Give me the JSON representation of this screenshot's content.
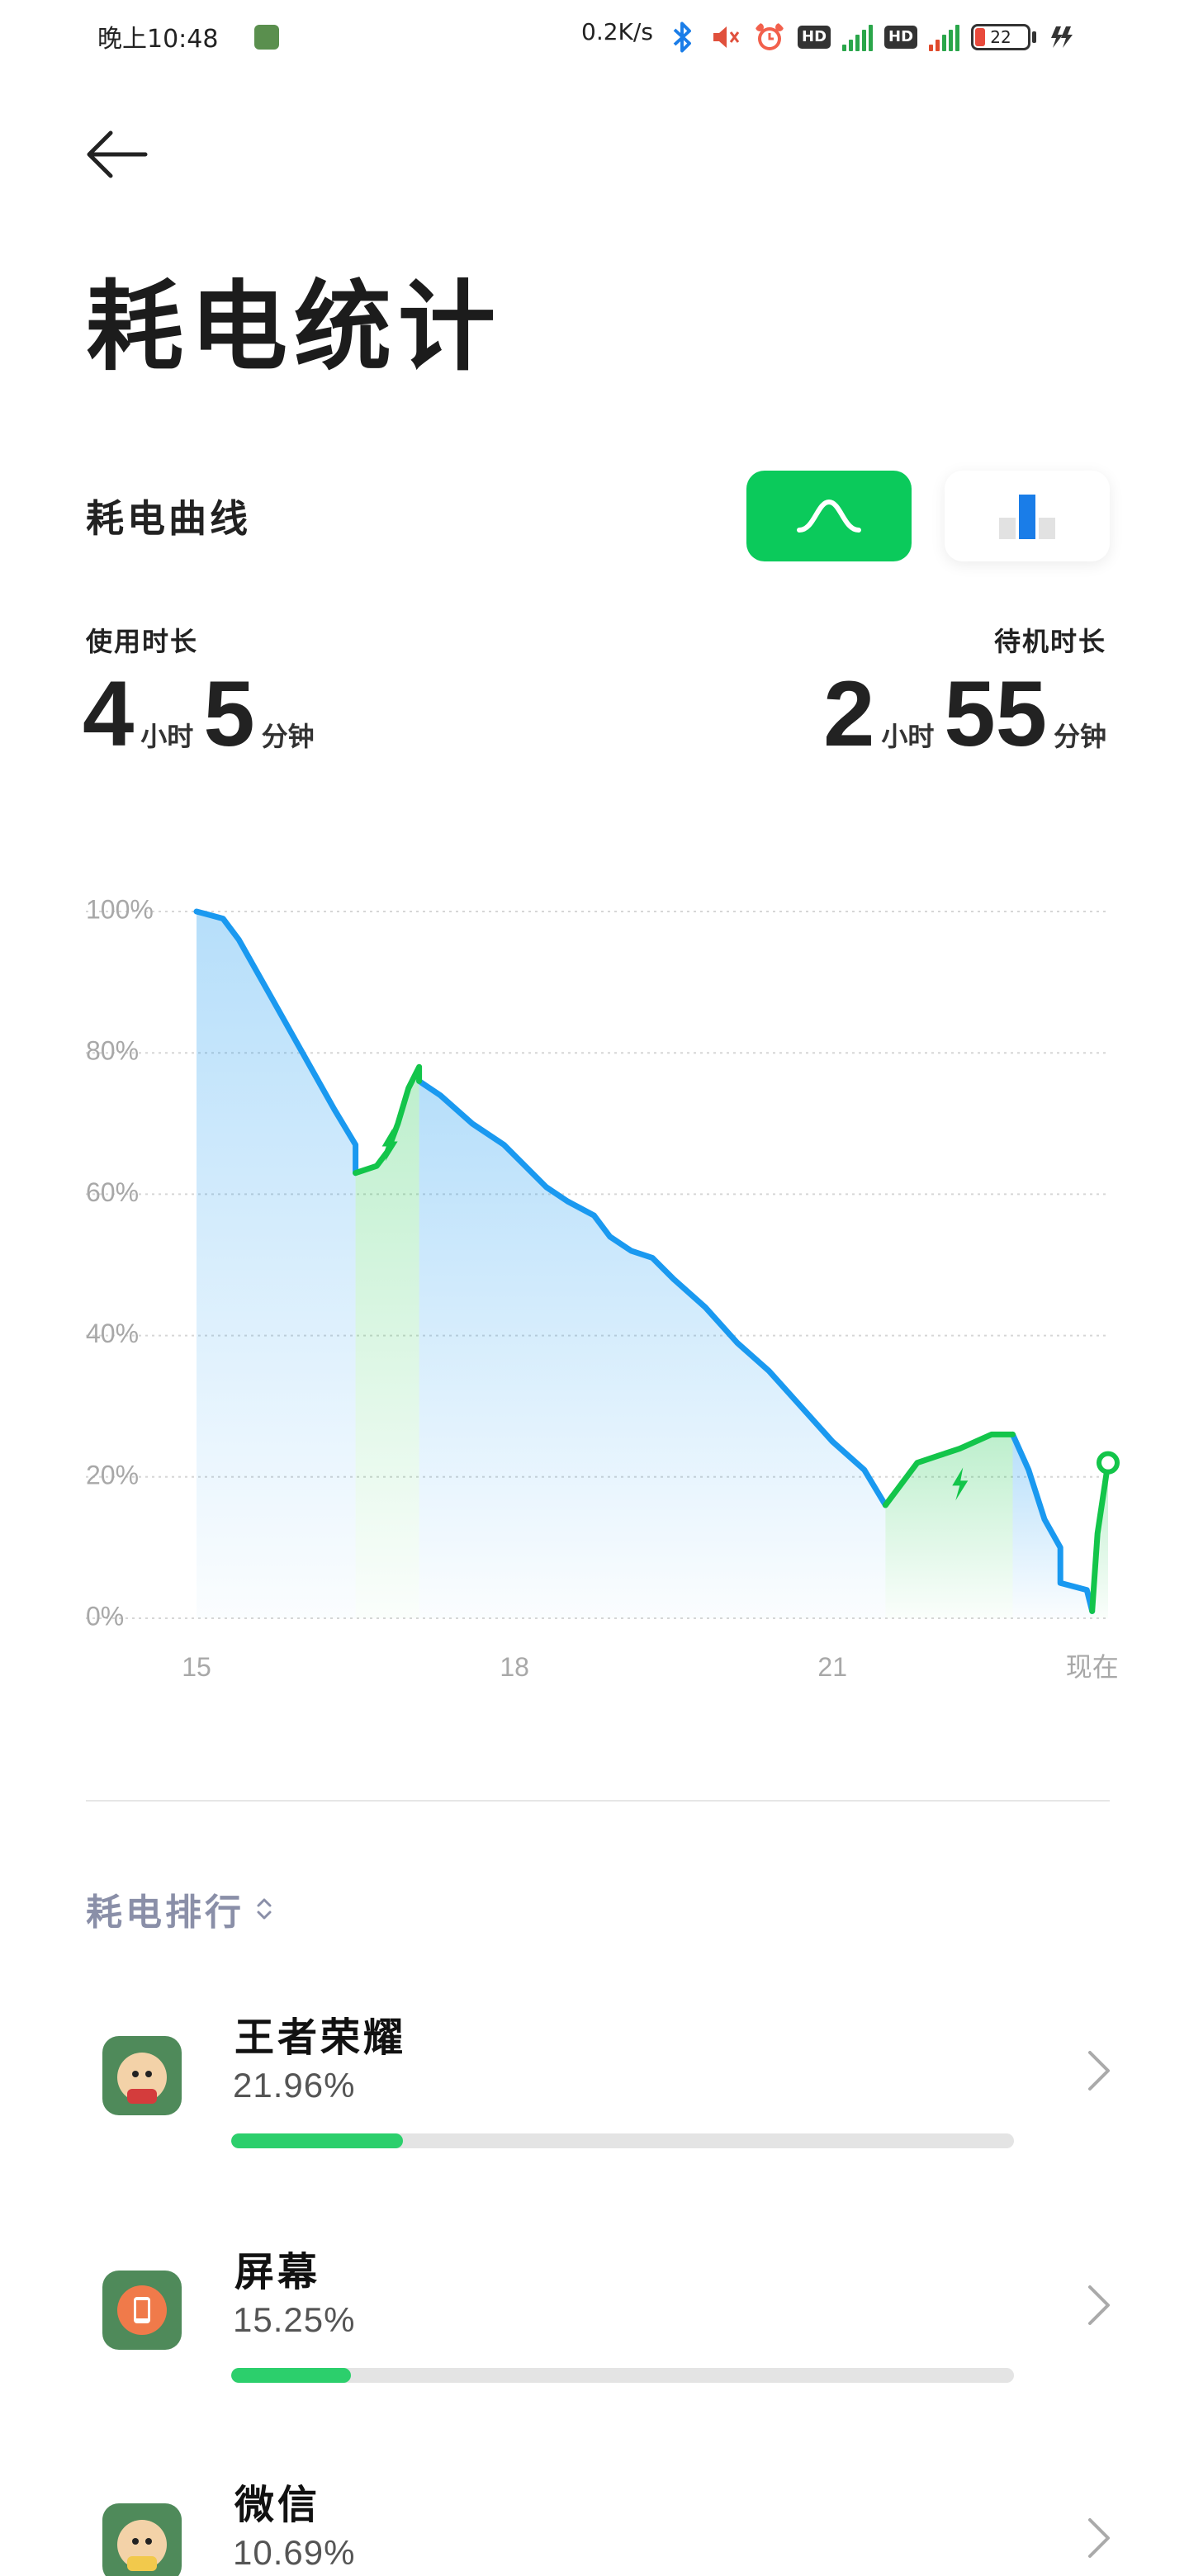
{
  "status_bar": {
    "time": "晚上10:48",
    "net_speed": "0.2K/s",
    "hd1": "HD",
    "hd2": "HD",
    "battery": "22",
    "icons": [
      "cartoon-app-icon",
      "bluetooth-icon",
      "mute-icon",
      "alarm-icon",
      "hd-icon",
      "signal-4g-icon",
      "hd-icon",
      "signal-4g-icon",
      "battery-icon",
      "charging-icon"
    ]
  },
  "header": {
    "title": "耗电统计"
  },
  "curve_section": {
    "label": "耗电曲线",
    "view_selected": "curve",
    "accent": "#0bca5b"
  },
  "usage": {
    "label": "使用时长",
    "hours": "4",
    "hours_unit": "小时",
    "minutes": "5",
    "minutes_unit": "分钟"
  },
  "standby": {
    "label": "待机时长",
    "hours": "2",
    "hours_unit": "小时",
    "minutes": "55",
    "minutes_unit": "分钟"
  },
  "chart_data": {
    "type": "area",
    "ytick_labels": [
      "100%",
      "80%",
      "60%",
      "40%",
      "20%",
      "0%"
    ],
    "xtick_labels": [
      "15",
      "18",
      "21",
      "现在"
    ],
    "ylim": [
      0,
      100
    ],
    "xlim": [
      15,
      22.8
    ],
    "colors": {
      "discharge": "#1a99f0",
      "charge": "#13c54a"
    },
    "discharge_segments": [
      [
        [
          15.0,
          100
        ],
        [
          15.25,
          99
        ],
        [
          15.4,
          96
        ],
        [
          15.7,
          88
        ],
        [
          16.0,
          80
        ],
        [
          16.3,
          72
        ],
        [
          16.5,
          67
        ],
        [
          16.5,
          63
        ]
      ],
      [
        [
          17.1,
          76
        ],
        [
          17.3,
          74
        ],
        [
          17.6,
          70
        ],
        [
          17.9,
          67
        ],
        [
          18.1,
          64
        ],
        [
          18.3,
          61
        ],
        [
          18.5,
          59
        ],
        [
          18.75,
          57
        ],
        [
          18.9,
          54
        ],
        [
          19.1,
          52
        ],
        [
          19.3,
          51
        ],
        [
          19.5,
          48
        ],
        [
          19.8,
          44
        ],
        [
          20.1,
          39
        ],
        [
          20.4,
          35
        ],
        [
          20.7,
          30
        ],
        [
          21.0,
          25
        ],
        [
          21.3,
          21
        ],
        [
          21.5,
          16
        ]
      ],
      [
        [
          22.7,
          26
        ],
        [
          22.85,
          21
        ],
        [
          23.0,
          14
        ],
        [
          23.15,
          10
        ],
        [
          23.15,
          5
        ],
        [
          23.4,
          4
        ],
        [
          23.45,
          1
        ]
      ]
    ],
    "charge_segments": [
      [
        [
          16.5,
          63
        ],
        [
          16.7,
          64
        ],
        [
          16.8,
          66
        ],
        [
          16.9,
          70
        ],
        [
          17.0,
          75
        ],
        [
          17.1,
          78
        ],
        [
          17.1,
          76
        ]
      ],
      [
        [
          21.5,
          16
        ],
        [
          21.8,
          22
        ],
        [
          22.0,
          23
        ],
        [
          22.2,
          24
        ],
        [
          22.5,
          26
        ],
        [
          22.7,
          26
        ]
      ],
      [
        [
          23.45,
          1
        ],
        [
          23.5,
          12
        ],
        [
          23.6,
          22
        ]
      ]
    ],
    "grid": true
  },
  "ranking": {
    "label": "耗电排行",
    "items": [
      {
        "name": "王者荣耀",
        "percent": "21.96%",
        "value": 21.96
      },
      {
        "name": "屏幕",
        "percent": "15.25%",
        "value": 15.25
      },
      {
        "name": "微信",
        "percent": "10.69%",
        "value": 10.69
      }
    ]
  }
}
